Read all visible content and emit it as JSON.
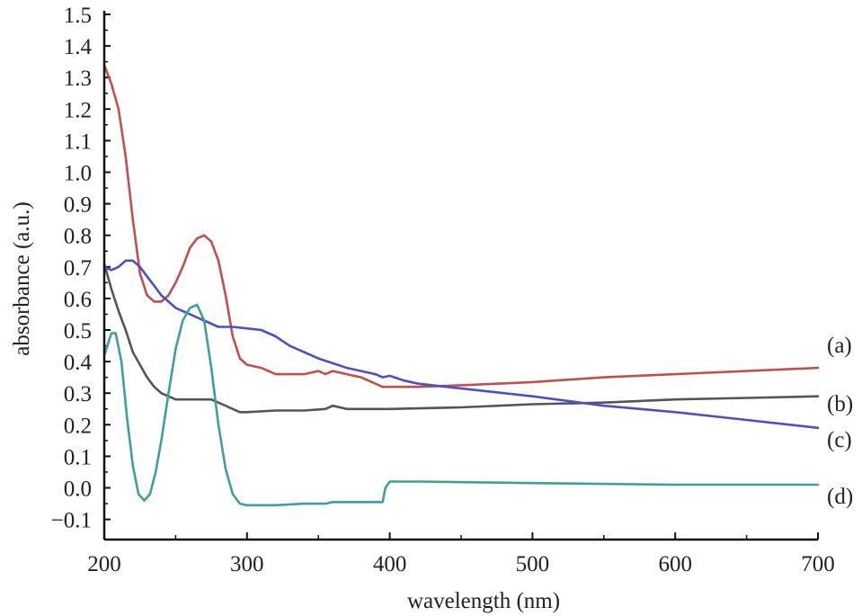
{
  "chart_data": {
    "type": "line",
    "title": "",
    "xlabel": "wavelength (nm)",
    "ylabel": "absorbance (a.u.)",
    "xlim": [
      200,
      700
    ],
    "ylim": [
      -0.15,
      1.5
    ],
    "x_ticks": [
      200,
      300,
      400,
      500,
      600,
      700
    ],
    "x_tick_labels": [
      "200",
      "300",
      "400",
      "500",
      "600",
      "700"
    ],
    "y_ticks": [
      -0.1,
      0.0,
      0.1,
      0.2,
      0.3,
      0.4,
      0.5,
      0.6,
      0.7,
      0.8,
      0.9,
      1.0,
      1.1,
      1.2,
      1.3,
      1.4,
      1.5
    ],
    "y_tick_labels": [
      "−0.1",
      "0.0",
      "0.1",
      "0.2",
      "0.3",
      "0.4",
      "0.5",
      "0.6",
      "0.7",
      "0.8",
      "0.9",
      "1.0",
      "1.1",
      "1.2",
      "1.3",
      "1.4",
      "1.5"
    ],
    "grid": false,
    "series": [
      {
        "name": "(a)",
        "color": "#c0504d",
        "points": [
          [
            200,
            1.34
          ],
          [
            205,
            1.28
          ],
          [
            210,
            1.2
          ],
          [
            215,
            1.05
          ],
          [
            220,
            0.85
          ],
          [
            225,
            0.68
          ],
          [
            230,
            0.61
          ],
          [
            235,
            0.59
          ],
          [
            240,
            0.59
          ],
          [
            245,
            0.61
          ],
          [
            250,
            0.65
          ],
          [
            255,
            0.7
          ],
          [
            260,
            0.76
          ],
          [
            265,
            0.79
          ],
          [
            270,
            0.8
          ],
          [
            275,
            0.78
          ],
          [
            280,
            0.72
          ],
          [
            285,
            0.61
          ],
          [
            290,
            0.48
          ],
          [
            295,
            0.41
          ],
          [
            300,
            0.39
          ],
          [
            310,
            0.38
          ],
          [
            320,
            0.36
          ],
          [
            330,
            0.36
          ],
          [
            340,
            0.36
          ],
          [
            350,
            0.37
          ],
          [
            355,
            0.36
          ],
          [
            360,
            0.37
          ],
          [
            370,
            0.36
          ],
          [
            380,
            0.35
          ],
          [
            390,
            0.33
          ],
          [
            395,
            0.32
          ],
          [
            400,
            0.32
          ],
          [
            420,
            0.32
          ],
          [
            450,
            0.325
          ],
          [
            500,
            0.335
          ],
          [
            550,
            0.35
          ],
          [
            600,
            0.36
          ],
          [
            650,
            0.37
          ],
          [
            700,
            0.38
          ]
        ]
      },
      {
        "name": "(b)",
        "color": "#555555",
        "points": [
          [
            200,
            0.71
          ],
          [
            205,
            0.63
          ],
          [
            210,
            0.56
          ],
          [
            215,
            0.5
          ],
          [
            220,
            0.43
          ],
          [
            225,
            0.39
          ],
          [
            230,
            0.35
          ],
          [
            235,
            0.32
          ],
          [
            240,
            0.3
          ],
          [
            245,
            0.29
          ],
          [
            250,
            0.28
          ],
          [
            255,
            0.28
          ],
          [
            260,
            0.28
          ],
          [
            265,
            0.28
          ],
          [
            270,
            0.28
          ],
          [
            275,
            0.28
          ],
          [
            280,
            0.27
          ],
          [
            285,
            0.26
          ],
          [
            290,
            0.25
          ],
          [
            295,
            0.24
          ],
          [
            300,
            0.24
          ],
          [
            320,
            0.245
          ],
          [
            340,
            0.245
          ],
          [
            355,
            0.25
          ],
          [
            360,
            0.26
          ],
          [
            370,
            0.25
          ],
          [
            390,
            0.25
          ],
          [
            395,
            0.25
          ],
          [
            400,
            0.25
          ],
          [
            450,
            0.255
          ],
          [
            500,
            0.265
          ],
          [
            550,
            0.27
          ],
          [
            600,
            0.28
          ],
          [
            650,
            0.285
          ],
          [
            700,
            0.29
          ]
        ]
      },
      {
        "name": "(c)",
        "color": "#4f4fc4",
        "points": [
          [
            200,
            0.7
          ],
          [
            205,
            0.69
          ],
          [
            210,
            0.7
          ],
          [
            215,
            0.72
          ],
          [
            220,
            0.72
          ],
          [
            225,
            0.7
          ],
          [
            230,
            0.67
          ],
          [
            235,
            0.64
          ],
          [
            240,
            0.61
          ],
          [
            245,
            0.59
          ],
          [
            250,
            0.57
          ],
          [
            255,
            0.56
          ],
          [
            260,
            0.55
          ],
          [
            265,
            0.54
          ],
          [
            270,
            0.53
          ],
          [
            280,
            0.51
          ],
          [
            290,
            0.51
          ],
          [
            300,
            0.505
          ],
          [
            310,
            0.5
          ],
          [
            320,
            0.48
          ],
          [
            330,
            0.45
          ],
          [
            340,
            0.43
          ],
          [
            350,
            0.41
          ],
          [
            360,
            0.395
          ],
          [
            370,
            0.38
          ],
          [
            380,
            0.37
          ],
          [
            390,
            0.36
          ],
          [
            395,
            0.35
          ],
          [
            400,
            0.355
          ],
          [
            410,
            0.34
          ],
          [
            420,
            0.33
          ],
          [
            440,
            0.32
          ],
          [
            460,
            0.31
          ],
          [
            500,
            0.29
          ],
          [
            550,
            0.26
          ],
          [
            600,
            0.24
          ],
          [
            650,
            0.215
          ],
          [
            700,
            0.19
          ]
        ]
      },
      {
        "name": "(d)",
        "color": "#3f9f9c",
        "points": [
          [
            200,
            0.42
          ],
          [
            205,
            0.49
          ],
          [
            208,
            0.49
          ],
          [
            212,
            0.4
          ],
          [
            216,
            0.22
          ],
          [
            220,
            0.07
          ],
          [
            224,
            -0.02
          ],
          [
            228,
            -0.04
          ],
          [
            232,
            -0.02
          ],
          [
            236,
            0.05
          ],
          [
            240,
            0.15
          ],
          [
            245,
            0.3
          ],
          [
            250,
            0.44
          ],
          [
            255,
            0.53
          ],
          [
            260,
            0.57
          ],
          [
            265,
            0.58
          ],
          [
            270,
            0.53
          ],
          [
            275,
            0.38
          ],
          [
            280,
            0.2
          ],
          [
            285,
            0.06
          ],
          [
            290,
            -0.02
          ],
          [
            295,
            -0.05
          ],
          [
            300,
            -0.055
          ],
          [
            320,
            -0.055
          ],
          [
            340,
            -0.05
          ],
          [
            355,
            -0.05
          ],
          [
            360,
            -0.045
          ],
          [
            380,
            -0.045
          ],
          [
            395,
            -0.045
          ],
          [
            397,
            0.0
          ],
          [
            400,
            0.02
          ],
          [
            420,
            0.02
          ],
          [
            500,
            0.015
          ],
          [
            600,
            0.01
          ],
          [
            700,
            0.01
          ]
        ]
      }
    ]
  }
}
